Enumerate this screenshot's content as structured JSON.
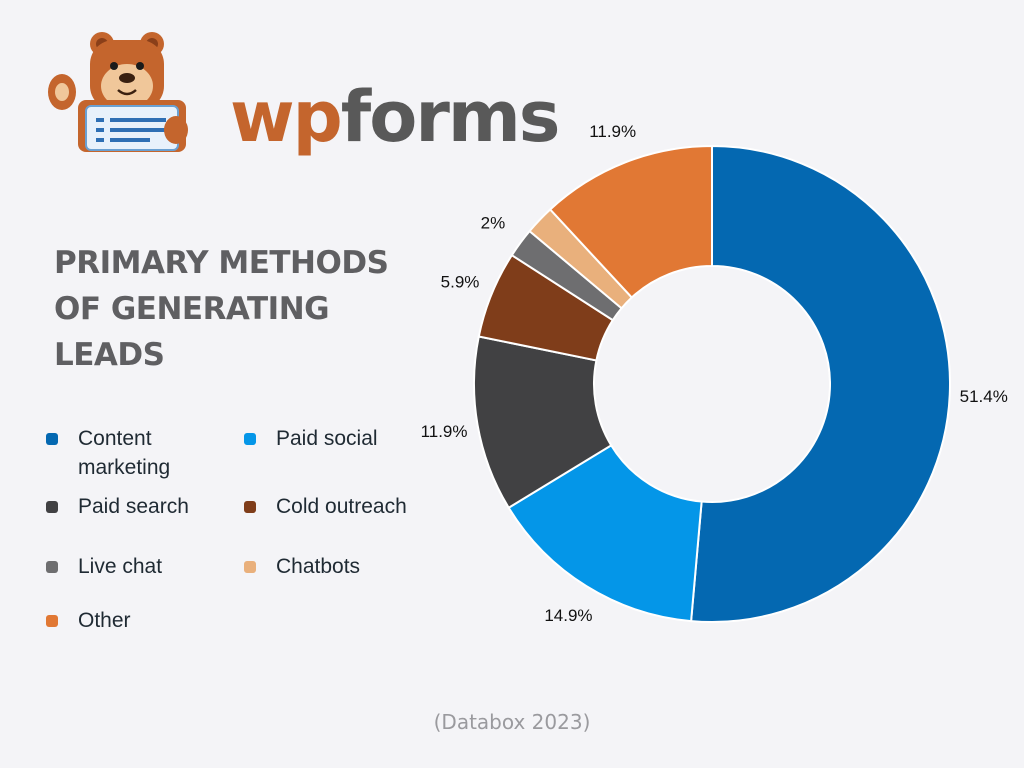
{
  "logo": {
    "wordmark_part1": "wp",
    "wordmark_part2": "forms",
    "wp_color": "#c4652d",
    "forms_color": "#595959",
    "mascot_icon": "bear-mascot-icon"
  },
  "title": "PRIMARY METHODS OF GENERATING LEADS",
  "source": "(Databox 2023)",
  "chart_data": {
    "type": "pie",
    "style": "donut",
    "title": "PRIMARY METHODS OF GENERATING LEADS",
    "legend_position": "left",
    "start": "12 o'clock, clockwise",
    "slices": [
      {
        "label": "Content marketing",
        "value": 51.4,
        "display": "51.4%",
        "color": "#0468b1"
      },
      {
        "label": "Paid social",
        "value": 14.9,
        "display": "14.9%",
        "color": "#0496e8"
      },
      {
        "label": "Paid search",
        "value": 11.9,
        "display": "11.9%",
        "color": "#414143"
      },
      {
        "label": "Cold outreach",
        "value": 5.9,
        "display": "5.9%",
        "color": "#7f3d1a"
      },
      {
        "label": "Live chat",
        "value": 2,
        "display": "2%",
        "color": "#6e6e70"
      },
      {
        "label": "Chatbots",
        "value": 2,
        "display": "",
        "color": "#e9b07c"
      },
      {
        "label": "Other",
        "value": 11.9,
        "display": "11.9%",
        "color": "#e17834"
      }
    ]
  },
  "legend": [
    {
      "label": "Content\nmarketing",
      "color": "#0468b1"
    },
    {
      "label": "Paid social",
      "color": "#0496e8"
    },
    {
      "label": "Paid search",
      "color": "#414143"
    },
    {
      "label": "Cold outreach",
      "color": "#7f3d1a"
    },
    {
      "label": "Live chat",
      "color": "#6e6e70"
    },
    {
      "label": "Chatbots",
      "color": "#e9b07c"
    },
    {
      "label": "Other",
      "color": "#e17834"
    }
  ]
}
